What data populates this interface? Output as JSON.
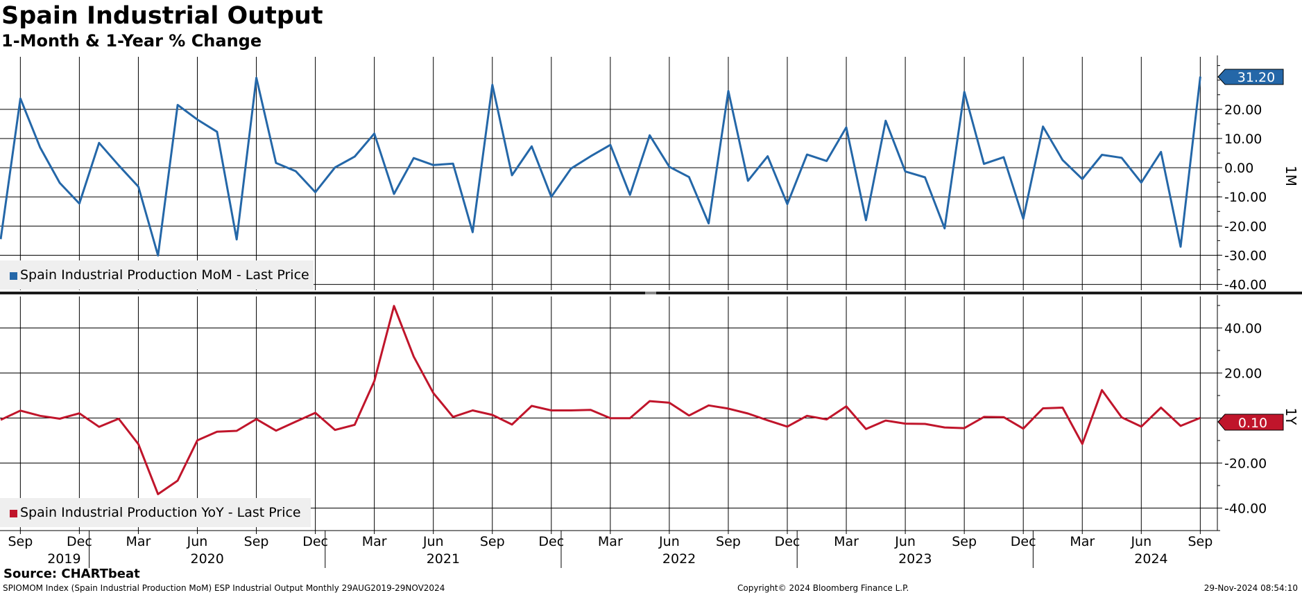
{
  "title": "Spain Industrial Output",
  "subtitle": "1-Month & 1-Year % Change",
  "source": "Source: CHARTbeat",
  "footer": {
    "left": "SPIOMOM Index (Spain Industrial Production MoM) ESP Industrial Output  Monthly 29AUG2019-29NOV2024",
    "center": "Copyright© 2024 Bloomberg Finance L.P.",
    "right": "29-Nov-2024 08:54:10"
  },
  "colors": {
    "mom": "#2467a8",
    "yoy": "#c0152b",
    "grid": "#000000",
    "legend_bg": "#efefef"
  },
  "x_axis": {
    "month_labels": [
      "Sep",
      "Dec",
      "Mar",
      "Jun",
      "Sep",
      "Dec",
      "Mar",
      "Jun",
      "Sep",
      "Dec",
      "Mar",
      "Jun",
      "Sep",
      "Dec",
      "Mar",
      "Jun",
      "Sep",
      "Dec",
      "Mar",
      "Jun",
      "Sep"
    ],
    "year_labels": [
      "2019",
      "2020",
      "2021",
      "2022",
      "2023",
      "2024"
    ]
  },
  "chart_data": [
    {
      "type": "line",
      "panel_label": "1M",
      "legend": "Spain Industrial Production MoM - Last Price",
      "last_value_label": "31.20",
      "ylim": [
        -42,
        38
      ],
      "yticks": [
        "20.00",
        "10.00",
        "0.00",
        "-10.00",
        "-20.00",
        "-30.00",
        "-40.00"
      ],
      "ytick_values": [
        20,
        10,
        0,
        -10,
        -20,
        -30,
        -40
      ],
      "x": [
        "2019-08",
        "2019-09",
        "2019-10",
        "2019-11",
        "2019-12",
        "2020-01",
        "2020-02",
        "2020-03",
        "2020-04",
        "2020-05",
        "2020-06",
        "2020-07",
        "2020-08",
        "2020-09",
        "2020-10",
        "2020-11",
        "2020-12",
        "2021-01",
        "2021-02",
        "2021-03",
        "2021-04",
        "2021-05",
        "2021-06",
        "2021-07",
        "2021-08",
        "2021-09",
        "2021-10",
        "2021-11",
        "2021-12",
        "2022-01",
        "2022-02",
        "2022-03",
        "2022-04",
        "2022-05",
        "2022-06",
        "2022-07",
        "2022-08",
        "2022-09",
        "2022-10",
        "2022-11",
        "2022-12",
        "2023-01",
        "2023-02",
        "2023-03",
        "2023-04",
        "2023-05",
        "2023-06",
        "2023-07",
        "2023-08",
        "2023-09",
        "2023-10",
        "2023-11",
        "2023-12",
        "2024-01",
        "2024-02",
        "2024-03",
        "2024-04",
        "2024-05",
        "2024-06",
        "2024-07",
        "2024-08",
        "2024-09"
      ],
      "series": [
        {
          "name": "Spain Industrial Production MoM - Last Price",
          "values": [
            -24.5,
            23.7,
            7.0,
            -5.2,
            -12.3,
            8.5,
            0.8,
            -6.5,
            -30.1,
            21.5,
            16.5,
            12.3,
            -24.6,
            30.8,
            1.6,
            -1.2,
            -8.4,
            0.1,
            3.8,
            11.7,
            -9.0,
            3.3,
            0.9,
            1.4,
            -22.1,
            28.4,
            -2.6,
            7.3,
            -10.0,
            -0.3,
            3.9,
            7.8,
            -9.3,
            11.1,
            0.3,
            -3.2,
            -19.1,
            26.3,
            -4.5,
            3.9,
            -12.5,
            4.5,
            2.3,
            13.8,
            -18.0,
            16.1,
            -1.3,
            -3.3,
            -20.8,
            26.0,
            1.3,
            3.6,
            -17.5,
            14.1,
            2.6,
            -3.9,
            4.4,
            3.4,
            -5.1,
            5.4,
            -27.1,
            31.2
          ]
        }
      ]
    },
    {
      "type": "line",
      "panel_label": "1Y",
      "legend": "Spain Industrial Production YoY - Last Price",
      "last_value_label": "0.10",
      "ylim": [
        -50,
        54
      ],
      "yticks": [
        "40.00",
        "20.00",
        "",
        "-20.00",
        "-40.00"
      ],
      "ytick_values": [
        40,
        20,
        0,
        -20,
        -40
      ],
      "x": [
        "2019-08",
        "2019-09",
        "2019-10",
        "2019-11",
        "2019-12",
        "2020-01",
        "2020-02",
        "2020-03",
        "2020-04",
        "2020-05",
        "2020-06",
        "2020-07",
        "2020-08",
        "2020-09",
        "2020-10",
        "2020-11",
        "2020-12",
        "2021-01",
        "2021-02",
        "2021-03",
        "2021-04",
        "2021-05",
        "2021-06",
        "2021-07",
        "2021-08",
        "2021-09",
        "2021-10",
        "2021-11",
        "2021-12",
        "2022-01",
        "2022-02",
        "2022-03",
        "2022-04",
        "2022-05",
        "2022-06",
        "2022-07",
        "2022-08",
        "2022-09",
        "2022-10",
        "2022-11",
        "2022-12",
        "2023-01",
        "2023-02",
        "2023-03",
        "2023-04",
        "2023-05",
        "2023-06",
        "2023-07",
        "2023-08",
        "2023-09",
        "2023-10",
        "2023-11",
        "2023-12",
        "2024-01",
        "2024-02",
        "2024-03",
        "2024-04",
        "2024-05",
        "2024-06",
        "2024-07",
        "2024-08",
        "2024-09"
      ],
      "series": [
        {
          "name": "Spain Industrial Production YoY - Last Price",
          "values": [
            -0.8,
            3.3,
            1.0,
            -0.3,
            2.1,
            -3.9,
            -0.3,
            -11.6,
            -33.8,
            -27.8,
            -9.9,
            -6.1,
            -5.7,
            -0.5,
            -5.6,
            -1.6,
            2.3,
            -5.3,
            -3.0,
            16.4,
            49.8,
            27.3,
            11.1,
            0.5,
            3.4,
            1.4,
            -2.9,
            5.4,
            3.4,
            3.4,
            3.6,
            -0.1,
            -0.1,
            7.5,
            6.8,
            1.1,
            5.6,
            4.2,
            2.0,
            -1.0,
            -3.8,
            1.0,
            -0.6,
            5.2,
            -4.9,
            -1.1,
            -2.5,
            -2.6,
            -4.2,
            -4.5,
            0.5,
            0.4,
            -4.7,
            4.3,
            4.6,
            -11.5,
            12.4,
            0.3,
            -3.8,
            4.6,
            -3.5,
            0.1
          ]
        }
      ]
    }
  ]
}
